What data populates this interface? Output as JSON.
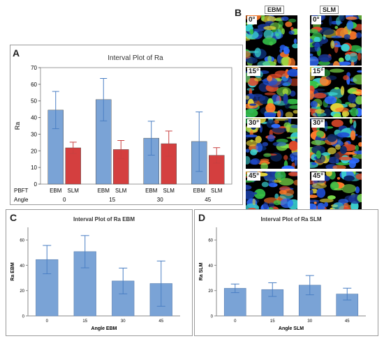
{
  "panel_labels": [
    "A",
    "B",
    "C",
    "D"
  ],
  "chart_data": [
    {
      "id": "A",
      "type": "bar",
      "title": "Interval Plot of Ra",
      "ylabel": "Ra",
      "ylim": [
        0,
        70
      ],
      "yticks": [
        0,
        10,
        20,
        30,
        40,
        50,
        60,
        70
      ],
      "group_row_labels": [
        "PBFT",
        "Angle"
      ],
      "groups": [
        "0",
        "15",
        "30",
        "45"
      ],
      "subcategories": [
        "EBM",
        "SLM"
      ],
      "grid": false,
      "series": [
        {
          "name": "EBM",
          "color": "#7aa3d6",
          "errcolor": "#4a7fc4",
          "values": [
            44.5,
            50.8,
            27.6,
            25.6
          ],
          "lower": [
            33.3,
            38.0,
            17.4,
            7.6
          ],
          "upper": [
            55.7,
            63.5,
            37.8,
            43.4
          ]
        },
        {
          "name": "SLM",
          "color": "#d43f3f",
          "errcolor": "#c94040",
          "values": [
            21.8,
            20.8,
            24.3,
            17.3
          ],
          "lower": [
            18.4,
            15.4,
            16.7,
            12.6
          ],
          "upper": [
            25.2,
            26.2,
            31.9,
            21.9
          ]
        }
      ]
    },
    {
      "id": "C",
      "type": "bar",
      "title": "Interval Plot of Ra EBM",
      "xlabel": "Angle EBM",
      "ylabel": "Ra EBM",
      "ylim": [
        0,
        70
      ],
      "yticks": [
        0,
        20,
        40,
        60
      ],
      "categories": [
        "0",
        "15",
        "30",
        "45"
      ],
      "values": [
        44.5,
        50.8,
        27.6,
        25.6
      ],
      "lower": [
        33.3,
        38.0,
        17.4,
        7.6
      ],
      "upper": [
        55.7,
        63.5,
        37.8,
        43.4
      ],
      "color": "#7aa3d6",
      "errcolor": "#4a7fc4",
      "grid": false
    },
    {
      "id": "D",
      "type": "bar",
      "title": "Interval Plot of Ra SLM",
      "xlabel": "Angle SLM",
      "ylabel": "Ra SLM",
      "ylim": [
        0,
        70
      ],
      "yticks": [
        0,
        20,
        40,
        60
      ],
      "categories": [
        "0",
        "15",
        "30",
        "45"
      ],
      "values": [
        21.8,
        20.8,
        24.3,
        17.3
      ],
      "lower": [
        18.4,
        15.4,
        16.7,
        12.6
      ],
      "upper": [
        25.2,
        26.2,
        31.9,
        21.9
      ],
      "color": "#7aa3d6",
      "errcolor": "#4a7fc4",
      "grid": false
    }
  ],
  "micrographs": {
    "columns": [
      "EBM",
      "SLM"
    ],
    "angles": [
      "0°",
      "15°",
      "30°",
      "45°"
    ]
  }
}
